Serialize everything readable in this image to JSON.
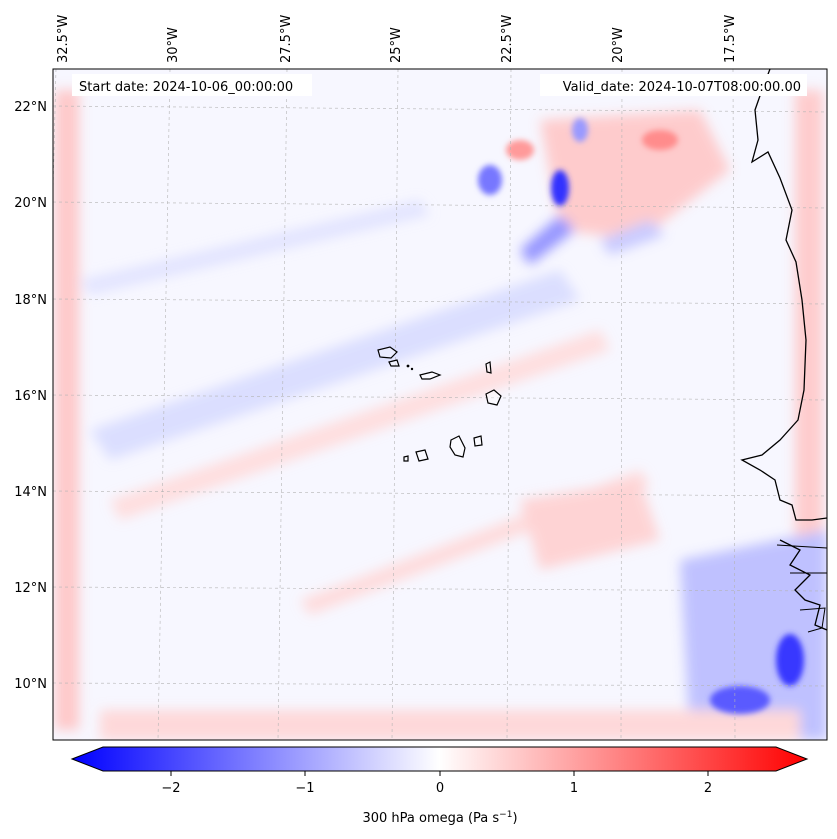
{
  "map": {
    "start_label": "Start date: 2024-10-06_00:00:00",
    "valid_label": "Valid_date: 2024-10-07T08:00:00.00",
    "lon_labels": [
      "32.5°W",
      "30°W",
      "27.5°W",
      "25°W",
      "22.5°W",
      "20°W",
      "17.5°W"
    ],
    "lat_labels": [
      "22°N",
      "20°N",
      "18°N",
      "16°N",
      "14°N",
      "12°N",
      "10°N"
    ],
    "colors": {
      "negative": "#0000ff",
      "neutral": "#ffffff",
      "positive": "#ff0000",
      "coast": "#000000",
      "grid": "#b4b4b4"
    }
  },
  "colorbar": {
    "ticks": [
      "−2",
      "−1",
      "0",
      "1",
      "2"
    ],
    "label_prefix": "300 hPa omega (Pa s",
    "label_sup": "−1",
    "label_suffix": ")"
  }
}
